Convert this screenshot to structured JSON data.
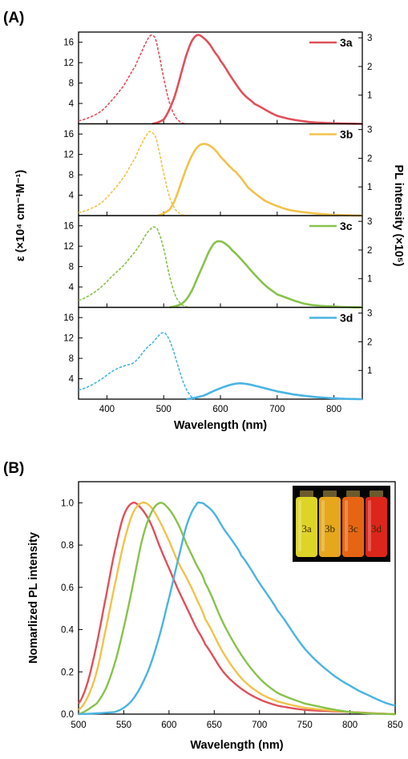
{
  "panel_a": {
    "tag": "(A)"
  },
  "panel_b": {
    "tag": "(B)"
  },
  "photo": {
    "vials": [
      {
        "label": "3a",
        "color": "#e9df2a"
      },
      {
        "label": "3b",
        "color": "#f2b01e"
      },
      {
        "label": "3c",
        "color": "#f26a14"
      },
      {
        "label": "3d",
        "color": "#e8271c"
      }
    ]
  },
  "chart_data": [
    {
      "panel": "(A)",
      "type": "line",
      "xlabel": "Wavelength (nm)",
      "ylabel_left": "ε (×10⁴ cm⁻¹M⁻¹)",
      "ylabel_right": "PL intensity (×10⁵)",
      "xlim": [
        350,
        850
      ],
      "xticks": [
        400,
        500,
        600,
        700,
        800
      ],
      "ylim_left": [
        0,
        18
      ],
      "yticks_left": [
        4,
        8,
        12,
        16
      ],
      "ylim_right": [
        0,
        3.2
      ],
      "yticks_right": [
        1,
        2,
        3
      ],
      "legend_placement": "top-right of each sub-panel",
      "subpanels": [
        {
          "name": "3a",
          "color": "#e0505a",
          "absorption": {
            "style": "dashed",
            "x": [
              350,
              370,
              390,
              410,
              430,
              450,
              460,
              470,
              478,
              485,
              490,
              500,
              510,
              520,
              530,
              540
            ],
            "y": [
              0.6,
              1.3,
              2.5,
              4.8,
              7.6,
              11.3,
              13.8,
              16.2,
              17.4,
              16.8,
              14.5,
              9.0,
              4.2,
              1.5,
              0.3,
              0.0
            ]
          },
          "emission": {
            "style": "solid",
            "x": [
              480,
              500,
              510,
              520,
              530,
              540,
              550,
              560,
              570,
              580,
              590,
              600,
              620,
              640,
              660,
              700,
              750,
              800,
              850
            ],
            "y": [
              0.0,
              0.15,
              0.5,
              1.0,
              1.7,
              2.4,
              2.9,
              3.1,
              3.0,
              2.8,
              2.5,
              2.2,
              1.6,
              1.05,
              0.7,
              0.28,
              0.08,
              0.02,
              0.0
            ]
          }
        },
        {
          "name": "3b",
          "color": "#f2c24a",
          "absorption": {
            "style": "dashed",
            "x": [
              350,
              370,
              390,
              410,
              430,
              450,
              460,
              470,
              476,
              485,
              490,
              500,
              510,
              520,
              530,
              540
            ],
            "y": [
              0.6,
              1.3,
              2.5,
              4.8,
              7.6,
              11.3,
              13.8,
              15.8,
              16.5,
              15.6,
              13.5,
              8.3,
              3.8,
              1.3,
              0.3,
              0.0
            ]
          },
          "emission": {
            "style": "solid",
            "x": [
              490,
              510,
              520,
              530,
              540,
              550,
              560,
              570,
              580,
              590,
              600,
              620,
              630,
              650,
              680,
              720,
              780,
              850
            ],
            "y": [
              0.0,
              0.2,
              0.55,
              1.1,
              1.65,
              2.1,
              2.4,
              2.5,
              2.45,
              2.3,
              2.05,
              1.65,
              1.45,
              0.95,
              0.5,
              0.2,
              0.05,
              0.0
            ]
          }
        },
        {
          "name": "3c",
          "color": "#88c24a",
          "absorption": {
            "style": "dashed",
            "x": [
              350,
              370,
              390,
              410,
              430,
              450,
              460,
              470,
              480,
              485,
              490,
              500,
              510,
              520,
              530,
              545
            ],
            "y": [
              1.4,
              2.4,
              4.0,
              6.2,
              8.3,
              10.9,
              12.6,
              14.5,
              15.6,
              15.7,
              15.0,
              11.5,
              6.3,
              2.5,
              0.7,
              0.0
            ]
          },
          "emission": {
            "style": "solid",
            "x": [
              510,
              530,
              540,
              550,
              560,
              570,
              580,
              590,
              600,
              610,
              620,
              640,
              660,
              680,
              700,
              750,
              800,
              850
            ],
            "y": [
              0.0,
              0.1,
              0.28,
              0.6,
              1.05,
              1.5,
              1.95,
              2.25,
              2.3,
              2.2,
              2.0,
              1.6,
              1.15,
              0.75,
              0.45,
              0.12,
              0.03,
              0.0
            ]
          }
        },
        {
          "name": "3d",
          "color": "#4ab4e2",
          "absorption": {
            "style": "dashed",
            "x": [
              350,
              370,
              390,
              410,
              430,
              445,
              455,
              470,
              480,
              490,
              498,
              505,
              515,
              525,
              535,
              545,
              555
            ],
            "y": [
              1.8,
              2.6,
              3.9,
              5.5,
              6.5,
              7.0,
              8.0,
              10.0,
              11.0,
              12.3,
              13.0,
              12.6,
              10.2,
              6.6,
              3.2,
              1.0,
              0.0
            ]
          },
          "emission": {
            "style": "solid",
            "x": [
              540,
              570,
              590,
              610,
              625,
              635,
              645,
              660,
              680,
              700,
              730,
              770,
              810,
              850
            ],
            "y": [
              0.0,
              0.12,
              0.3,
              0.45,
              0.53,
              0.55,
              0.53,
              0.47,
              0.37,
              0.27,
              0.16,
              0.07,
              0.02,
              0.0
            ]
          }
        }
      ]
    },
    {
      "panel": "(B)",
      "type": "line",
      "xlabel": "Wavelength (nm)",
      "ylabel": "Nomarlized PL intensity",
      "xlim": [
        500,
        850
      ],
      "xticks": [
        500,
        550,
        600,
        650,
        700,
        750,
        800,
        850
      ],
      "ylim": [
        0,
        1.1
      ],
      "yticks": [
        0.0,
        0.2,
        0.4,
        0.6,
        0.8,
        1.0
      ],
      "grid": false,
      "series": [
        {
          "name": "3a",
          "color": "#e0505a",
          "x": [
            500,
            510,
            520,
            530,
            540,
            550,
            560,
            570,
            580,
            590,
            600,
            610,
            620,
            630,
            640,
            660,
            680,
            700,
            720,
            750,
            800,
            850
          ],
          "y": [
            0.05,
            0.15,
            0.33,
            0.55,
            0.77,
            0.94,
            1.0,
            0.97,
            0.9,
            0.79,
            0.69,
            0.59,
            0.5,
            0.41,
            0.33,
            0.2,
            0.12,
            0.07,
            0.04,
            0.02,
            0.01,
            0.0
          ]
        },
        {
          "name": "3b",
          "color": "#f2c24a",
          "x": [
            500,
            510,
            520,
            530,
            540,
            550,
            560,
            570,
            580,
            590,
            600,
            610,
            620,
            630,
            640,
            660,
            680,
            700,
            720,
            750,
            800,
            850
          ],
          "y": [
            0.02,
            0.08,
            0.2,
            0.4,
            0.61,
            0.81,
            0.95,
            1.0,
            0.98,
            0.91,
            0.82,
            0.72,
            0.64,
            0.55,
            0.45,
            0.29,
            0.17,
            0.1,
            0.06,
            0.03,
            0.01,
            0.0
          ]
        },
        {
          "name": "3c",
          "color": "#88c24a",
          "x": [
            500,
            520,
            530,
            540,
            550,
            560,
            570,
            580,
            590,
            600,
            610,
            620,
            630,
            640,
            660,
            680,
            700,
            720,
            750,
            800,
            850
          ],
          "y": [
            0.0,
            0.05,
            0.12,
            0.24,
            0.41,
            0.61,
            0.82,
            0.95,
            1.0,
            0.97,
            0.9,
            0.8,
            0.71,
            0.62,
            0.43,
            0.28,
            0.17,
            0.1,
            0.05,
            0.01,
            0.0
          ]
        },
        {
          "name": "3d",
          "color": "#4ab4e2",
          "x": [
            500,
            540,
            550,
            560,
            570,
            580,
            590,
            600,
            610,
            620,
            630,
            635,
            640,
            650,
            660,
            670,
            680,
            700,
            720,
            750,
            780,
            810,
            850
          ],
          "y": [
            0.0,
            0.01,
            0.03,
            0.07,
            0.14,
            0.24,
            0.38,
            0.55,
            0.73,
            0.9,
            0.99,
            1.0,
            0.99,
            0.95,
            0.88,
            0.82,
            0.75,
            0.62,
            0.49,
            0.31,
            0.19,
            0.11,
            0.04
          ]
        }
      ]
    }
  ]
}
